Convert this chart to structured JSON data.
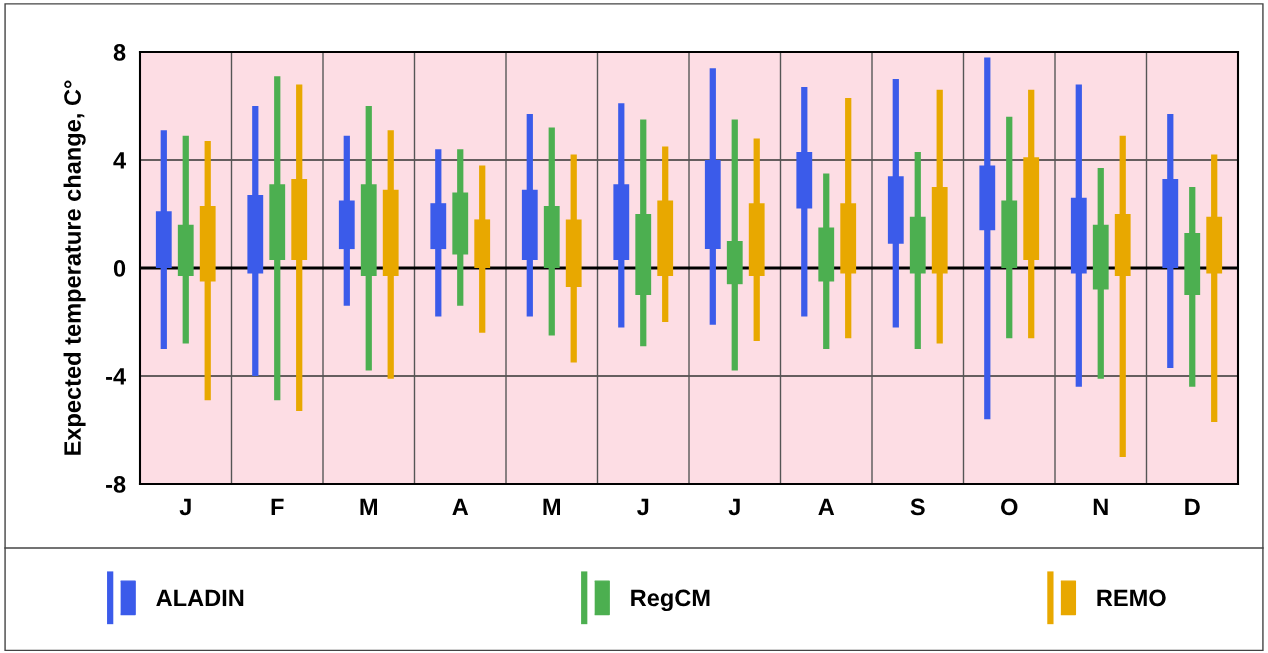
{
  "chart_data": {
    "type": "box",
    "ylabel": "Expected temperature change, C°",
    "categories": [
      "J",
      "F",
      "M",
      "A",
      "M",
      "J",
      "J",
      "A",
      "S",
      "O",
      "N",
      "D"
    ],
    "ylim": [
      -8,
      8
    ],
    "yticks": [
      -8,
      -4,
      0,
      4,
      8
    ],
    "grid": true,
    "legend": "bottom",
    "ref_lines": [
      {
        "axis": "y",
        "value": 0,
        "label": null
      }
    ],
    "series": [
      {
        "name": "ALADIN",
        "color": "#3b5bea",
        "boxes": [
          {
            "low": -3.0,
            "q1": 0,
            "q3": 2.1,
            "high": 5.1
          },
          {
            "low": -4.0,
            "q1": -0.2,
            "q3": 2.7,
            "high": 6.0
          },
          {
            "low": -1.4,
            "q1": 0.7,
            "q3": 2.5,
            "high": 4.9
          },
          {
            "low": -1.8,
            "q1": 0.7,
            "q3": 2.4,
            "high": 4.4
          },
          {
            "low": -1.8,
            "q1": 0.3,
            "q3": 2.9,
            "high": 5.7
          },
          {
            "low": -2.2,
            "q1": 0.3,
            "q3": 3.1,
            "high": 6.1
          },
          {
            "low": -2.1,
            "q1": 0.7,
            "q3": 4.0,
            "high": 7.4
          },
          {
            "low": -1.8,
            "q1": 2.2,
            "q3": 4.3,
            "high": 6.7
          },
          {
            "low": -2.2,
            "q1": 0.9,
            "q3": 3.4,
            "high": 7.0
          },
          {
            "low": -5.6,
            "q1": 1.4,
            "q3": 3.8,
            "high": 7.8
          },
          {
            "low": -4.4,
            "q1": -0.2,
            "q3": 2.6,
            "high": 6.8
          },
          {
            "low": -3.7,
            "q1": 0,
            "q3": 3.3,
            "high": 5.7
          }
        ]
      },
      {
        "name": "RegCM",
        "color": "#4caf50",
        "boxes": [
          {
            "low": -2.8,
            "q1": -0.3,
            "q3": 1.6,
            "high": 4.9
          },
          {
            "low": -4.9,
            "q1": 0.3,
            "q3": 3.1,
            "high": 7.1
          },
          {
            "low": -3.8,
            "q1": -0.3,
            "q3": 3.1,
            "high": 6.0
          },
          {
            "low": -1.4,
            "q1": 0.5,
            "q3": 2.8,
            "high": 4.4
          },
          {
            "low": -2.5,
            "q1": 0,
            "q3": 2.3,
            "high": 5.2
          },
          {
            "low": -2.9,
            "q1": -1.0,
            "q3": 2.0,
            "high": 5.5
          },
          {
            "low": -3.8,
            "q1": -0.6,
            "q3": 1.0,
            "high": 5.5
          },
          {
            "low": -3.0,
            "q1": -0.5,
            "q3": 1.5,
            "high": 3.5
          },
          {
            "low": -3.0,
            "q1": -0.2,
            "q3": 1.9,
            "high": 4.3
          },
          {
            "low": -2.6,
            "q1": 0,
            "q3": 2.5,
            "high": 5.6
          },
          {
            "low": -4.1,
            "q1": -0.8,
            "q3": 1.6,
            "high": 3.7
          },
          {
            "low": -4.4,
            "q1": -1.0,
            "q3": 1.3,
            "high": 3.0
          }
        ]
      },
      {
        "name": "REMO",
        "color": "#e8a800",
        "boxes": [
          {
            "low": -4.9,
            "q1": -0.5,
            "q3": 2.3,
            "high": 4.7
          },
          {
            "low": -5.3,
            "q1": 0.3,
            "q3": 3.3,
            "high": 6.8
          },
          {
            "low": -4.1,
            "q1": -0.3,
            "q3": 2.9,
            "high": 5.1
          },
          {
            "low": -2.4,
            "q1": 0,
            "q3": 1.8,
            "high": 3.8
          },
          {
            "low": -3.5,
            "q1": -0.7,
            "q3": 1.8,
            "high": 4.2
          },
          {
            "low": -2.0,
            "q1": -0.3,
            "q3": 2.5,
            "high": 4.5
          },
          {
            "low": -2.7,
            "q1": -0.3,
            "q3": 2.4,
            "high": 4.8
          },
          {
            "low": -2.6,
            "q1": -0.2,
            "q3": 2.4,
            "high": 6.3
          },
          {
            "low": -2.8,
            "q1": -0.2,
            "q3": 3.0,
            "high": 6.6
          },
          {
            "low": -2.6,
            "q1": 0.3,
            "q3": 4.1,
            "high": 6.6
          },
          {
            "low": -7.0,
            "q1": -0.3,
            "q3": 2.0,
            "high": 4.9
          },
          {
            "low": -5.7,
            "q1": -0.2,
            "q3": 1.9,
            "high": 4.2
          }
        ]
      }
    ]
  }
}
